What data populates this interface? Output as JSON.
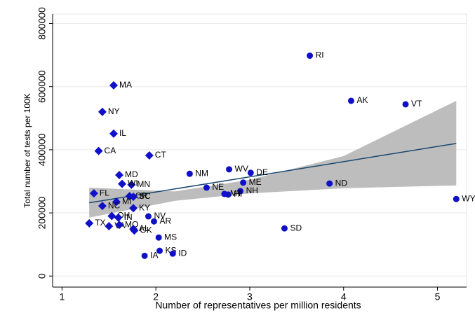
{
  "chart_data": {
    "type": "scatter",
    "x_label": "Number of representatives per million residents",
    "y_label": "Total number of tests per 100K",
    "xlim": [
      0.9,
      5.31
    ],
    "ylim": [
      -35000,
      830000
    ],
    "xticks": [
      1,
      2,
      3,
      4,
      5
    ],
    "yticks": [
      0,
      200000,
      400000,
      600000,
      800000
    ],
    "grid": true,
    "color": "#1010c8",
    "point_labels": [
      "RI",
      "AK",
      "VT",
      "WY",
      "ND",
      "SD",
      "MA",
      "NY",
      "IL",
      "CA",
      "CT",
      "NM",
      "WV",
      "DE",
      "ME",
      "NE",
      "NH",
      "MT",
      "HI",
      "MD",
      "FL",
      "MN",
      "WI",
      "OR",
      "SC",
      "MI",
      "KY",
      "NV",
      "NC",
      "TX",
      "OH",
      "IN",
      "VA",
      "MO",
      "AR",
      "AL",
      "OK",
      "MS",
      "KS",
      "ID",
      "IA"
    ],
    "markers": [
      "circle",
      "circle",
      "circle",
      "circle",
      "circle",
      "circle",
      "diamond",
      "diamond",
      "diamond",
      "diamond",
      "diamond",
      "circle",
      "circle",
      "circle",
      "circle",
      "circle",
      "circle",
      "circle",
      "circle",
      "diamond",
      "diamond",
      "diamond",
      "diamond",
      "diamond",
      "diamond",
      "diamond",
      "diamond",
      "circle",
      "diamond",
      "diamond",
      "diamond",
      "diamond",
      "diamond",
      "diamond",
      "circle",
      "diamond",
      "diamond",
      "circle",
      "circle",
      "circle",
      "circle"
    ],
    "x": [
      3.64,
      4.08,
      4.66,
      5.2,
      3.85,
      3.37,
      1.55,
      1.43,
      1.55,
      1.39,
      1.93,
      2.36,
      2.78,
      3.01,
      2.93,
      2.54,
      2.9,
      2.73,
      2.77,
      1.61,
      1.34,
      1.74,
      1.64,
      1.72,
      1.76,
      1.58,
      1.76,
      1.92,
      1.43,
      1.29,
      1.53,
      1.6,
      1.5,
      1.61,
      1.98,
      1.76,
      1.77,
      2.03,
      2.04,
      2.18,
      1.88
    ],
    "values": [
      698000,
      555000,
      544000,
      244000,
      293000,
      151000,
      604000,
      520000,
      451000,
      396000,
      382000,
      324000,
      338000,
      327000,
      296000,
      280000,
      269000,
      260000,
      258000,
      320000,
      262000,
      289000,
      292000,
      253000,
      251000,
      235000,
      215000,
      189000,
      222000,
      167000,
      190000,
      185000,
      158000,
      162000,
      173000,
      149000,
      144000,
      122000,
      80000,
      71000,
      64000
    ],
    "fit": {
      "color": "#1a476f",
      "x": [
        1.29,
        5.2
      ],
      "values": [
        232000,
        420000
      ]
    },
    "band": {
      "color": "#bdbdbd",
      "x": [
        1.29,
        2.2,
        3,
        4,
        5.2
      ],
      "lower": [
        185000,
        238000,
        262000,
        278000,
        287000
      ],
      "upper": [
        280000,
        268000,
        305000,
        380000,
        555000
      ]
    }
  }
}
